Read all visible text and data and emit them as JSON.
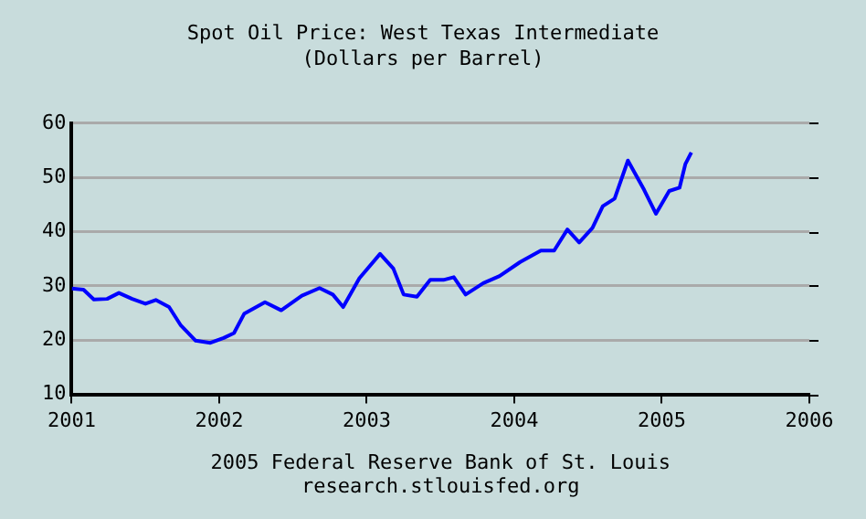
{
  "chart_data": {
    "type": "line",
    "title": "Spot Oil Price: West Texas Intermediate",
    "subtitle": "(Dollars per Barrel)",
    "annotations": [
      "2005 Federal Reserve Bank of St. Louis",
      "research.stlouisfed.org"
    ],
    "x": [
      2001.0,
      2001.08,
      2001.15,
      2001.24,
      2001.32,
      2001.41,
      2001.5,
      2001.57,
      2001.66,
      2001.74,
      2001.84,
      2001.94,
      2002.03,
      2002.1,
      2002.17,
      2002.31,
      2002.42,
      2002.56,
      2002.68,
      2002.77,
      2002.84,
      2002.95,
      2003.09,
      2003.18,
      2003.25,
      2003.34,
      2003.43,
      2003.52,
      2003.59,
      2003.67,
      2003.79,
      2003.9,
      2004.04,
      2004.18,
      2004.27,
      2004.36,
      2004.44,
      2004.53,
      2004.6,
      2004.68,
      2004.77,
      2004.88,
      2004.96,
      2005.05,
      2005.12,
      2005.16,
      2005.2
    ],
    "series": [
      {
        "color": "#0000ff",
        "values": [
          29.5,
          29.3,
          27.5,
          27.6,
          28.7,
          27.6,
          26.7,
          27.4,
          26.1,
          22.7,
          19.9,
          19.5,
          20.4,
          21.3,
          24.9,
          27.0,
          25.5,
          28.2,
          29.6,
          28.4,
          26.1,
          31.4,
          35.9,
          33.2,
          28.4,
          28.0,
          31.1,
          31.1,
          31.6,
          28.4,
          30.5,
          31.8,
          34.4,
          36.5,
          36.5,
          40.4,
          38.0,
          40.7,
          44.7,
          46.1,
          53.1,
          47.7,
          43.3,
          47.5,
          48.1,
          52.5,
          54.6
        ]
      }
    ],
    "xlim": [
      2001,
      2006
    ],
    "xticks": [
      2001,
      2002,
      2003,
      2004,
      2005,
      2006
    ],
    "ylim": [
      10,
      60
    ],
    "yticks": [
      10,
      20,
      30,
      40,
      50,
      60
    ],
    "grid": "y",
    "legend": false,
    "marker": "none",
    "line_style": "solid"
  }
}
